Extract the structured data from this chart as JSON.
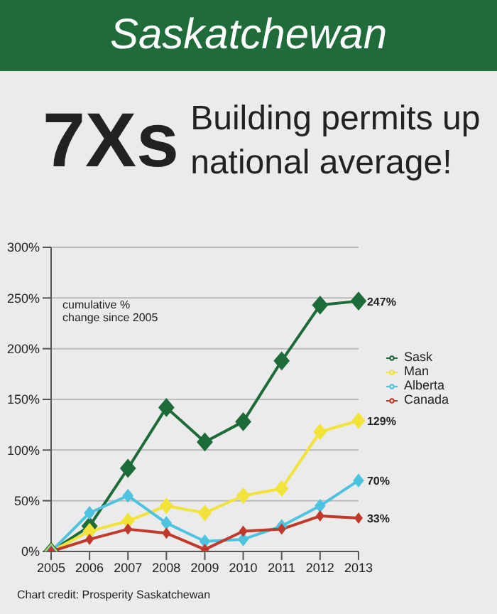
{
  "chart_data": {
    "type": "line",
    "title": "Saskatchewan",
    "subtitle": "Building permits up national average!",
    "categories": [
      "2005",
      "2006",
      "2007",
      "2008",
      "2009",
      "2010",
      "2011",
      "2012",
      "2013"
    ],
    "series": [
      {
        "name": "Sask",
        "color": "#1e6b3a",
        "values": [
          0,
          25,
          82,
          142,
          108,
          128,
          188,
          243,
          247
        ],
        "value_labels": [
          null,
          null,
          null,
          null,
          null,
          null,
          null,
          null,
          "247%"
        ]
      },
      {
        "name": "Man",
        "color": "#f2e33a",
        "values": [
          0,
          20,
          30,
          45,
          38,
          55,
          62,
          118,
          129
        ],
        "value_labels": [
          null,
          null,
          null,
          null,
          null,
          null,
          null,
          null,
          "129%"
        ]
      },
      {
        "name": "Alberta",
        "color": "#4ec3e0",
        "values": [
          0,
          38,
          55,
          28,
          10,
          12,
          25,
          45,
          70
        ],
        "value_labels": [
          null,
          null,
          null,
          null,
          null,
          null,
          null,
          null,
          "70%"
        ]
      },
      {
        "name": "Canada",
        "color": "#c0392b",
        "values": [
          0,
          12,
          22,
          18,
          2,
          20,
          22,
          35,
          33
        ],
        "value_labels": [
          null,
          null,
          null,
          null,
          null,
          null,
          null,
          null,
          "33%"
        ]
      }
    ],
    "ylim": [
      0,
      300
    ],
    "yticks": [
      {
        "value": 0,
        "label": "0%"
      },
      {
        "value": 50,
        "label": "50%"
      },
      {
        "value": 100,
        "label": "100%"
      },
      {
        "value": 150,
        "label": "150%"
      },
      {
        "value": 200,
        "label": "200%"
      },
      {
        "value": 250,
        "label": "250%"
      },
      {
        "value": 300,
        "label": "300%"
      }
    ],
    "grid": "y",
    "legend": "right",
    "marker": "diamond",
    "line_style": "solid",
    "annotations": [
      "7Xs",
      "cumulative % change since 2005",
      "Chart credit: Prosperity Saskatchewan"
    ]
  }
}
